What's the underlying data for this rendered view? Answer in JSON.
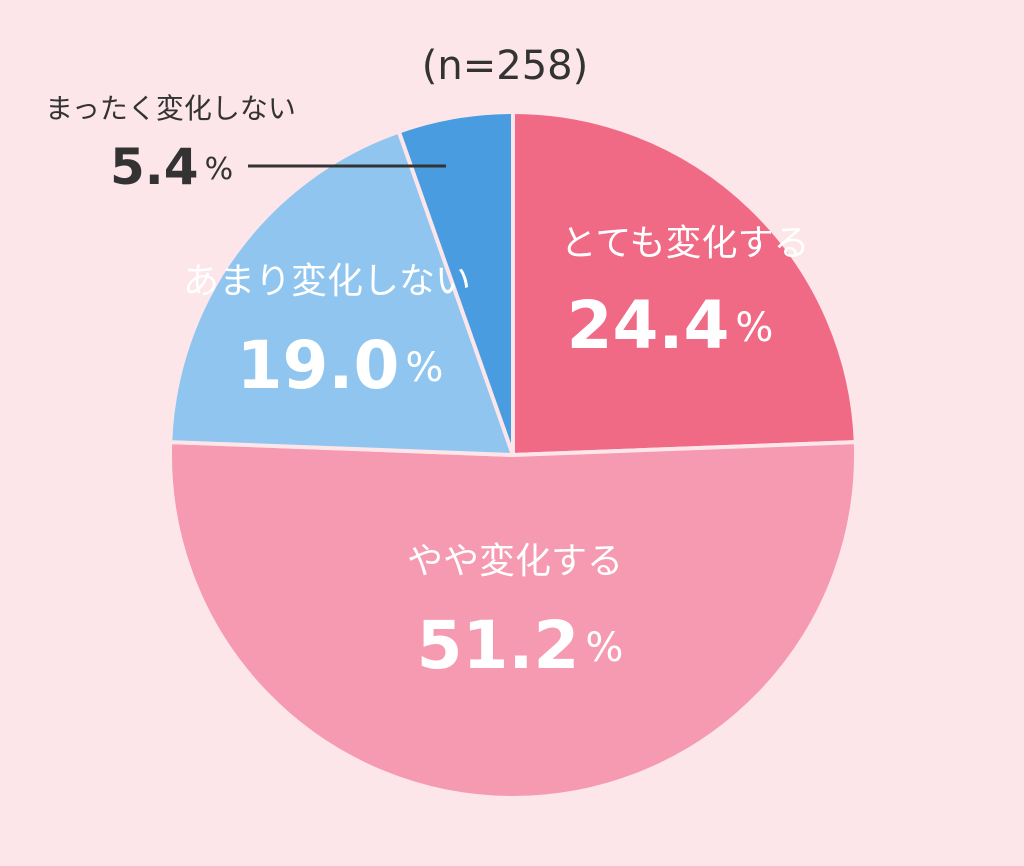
{
  "chart_data": {
    "type": "pie",
    "title": "(n=258)",
    "categories": [
      "とても変化する",
      "やや変化する",
      "あまり変化しない",
      "まったく変化しない"
    ],
    "values": [
      24.4,
      51.2,
      19.0,
      5.4
    ],
    "value_labels": [
      "24.4%",
      "51.2%",
      "19.0%",
      "5.4%"
    ],
    "colors": [
      "#f06a86",
      "#f59ab0",
      "#8fc5ef",
      "#4a9ce0"
    ]
  }
}
